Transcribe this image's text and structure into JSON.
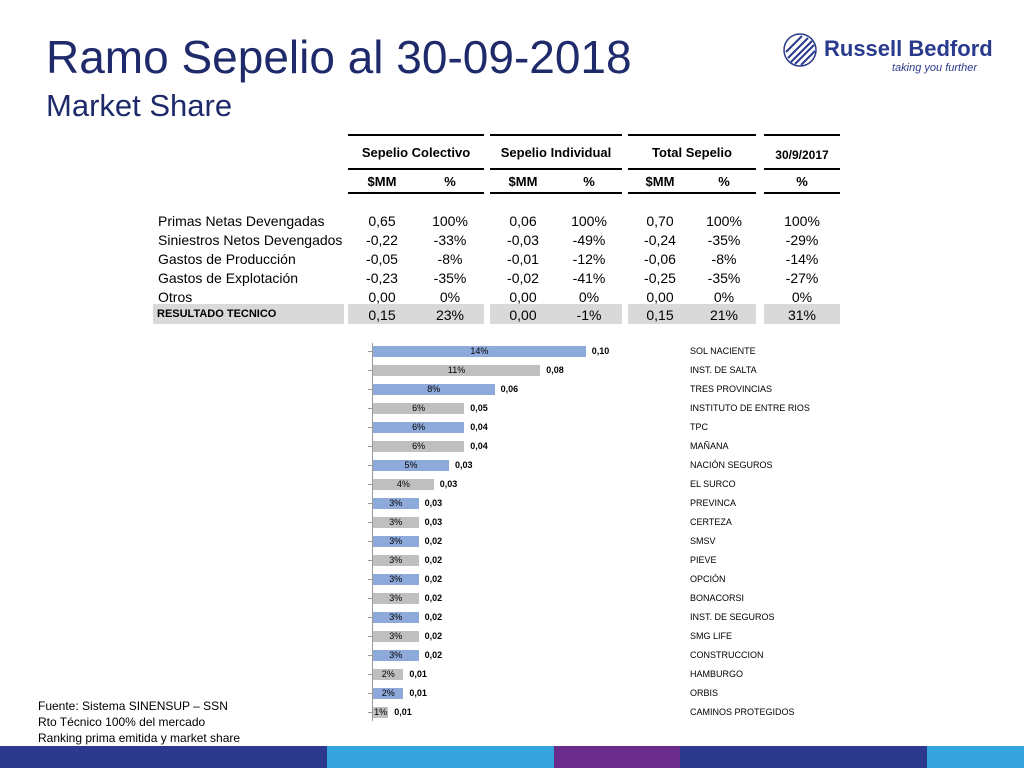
{
  "title": "Ramo Sepelio al 30-09-2018",
  "subtitle": "Market Share",
  "logo": {
    "name": "Russell Bedford",
    "tagline": "taking you further"
  },
  "table": {
    "group_headers": [
      "Sepelio Colectivo",
      "Sepelio Individual",
      "Total Sepelio",
      "30/9/2017"
    ],
    "sub_headers": [
      "$MM",
      "%",
      "$MM",
      "%",
      "$MM",
      "%",
      "%"
    ],
    "rows": [
      {
        "label": "Primas Netas Devengadas",
        "values": [
          "0,65",
          "100%",
          "0,06",
          "100%",
          "0,70",
          "100%",
          "100%"
        ]
      },
      {
        "label": "Siniestros Netos Devengados",
        "values": [
          "-0,22",
          "-33%",
          "-0,03",
          "-49%",
          "-0,24",
          "-35%",
          "-29%"
        ]
      },
      {
        "label": "Gastos de Producción",
        "values": [
          "-0,05",
          "-8%",
          "-0,01",
          "-12%",
          "-0,06",
          "-8%",
          "-14%"
        ]
      },
      {
        "label": "Gastos de Explotación",
        "values": [
          "-0,23",
          "-35%",
          "-0,02",
          "-41%",
          "-0,25",
          "-35%",
          "-27%"
        ]
      },
      {
        "label": "Otros",
        "values": [
          "0,00",
          "0%",
          "0,00",
          "0%",
          "0,00",
          "0%",
          "0%"
        ]
      }
    ],
    "result_row": {
      "label": "RESULTADO TECNICO",
      "values": [
        "0,15",
        "23%",
        "0,00",
        "-1%",
        "0,15",
        "21%",
        "31%"
      ]
    }
  },
  "chart_data": {
    "type": "bar",
    "orientation": "horizontal",
    "categories": [
      "SOL NACIENTE",
      "INST. DE SALTA",
      "TRES PROVINCIAS",
      "INSTITUTO DE ENTRE RIOS",
      "TPC",
      "MAÑANA",
      "NACIÓN SEGUROS",
      "EL SURCO",
      "PREVINCA",
      "CERTEZA",
      "SMSV",
      "PIEVE",
      "OPCIÓN",
      "BONACORSI",
      "INST. DE SEGUROS",
      "SMG LIFE",
      "CONSTRUCCION",
      "HAMBURGO",
      "ORBIS",
      "CAMINOS PROTEGIDOS"
    ],
    "values": [
      0.1,
      0.08,
      0.06,
      0.05,
      0.04,
      0.04,
      0.03,
      0.03,
      0.03,
      0.03,
      0.02,
      0.02,
      0.02,
      0.02,
      0.02,
      0.02,
      0.02,
      0.01,
      0.01,
      0.01
    ],
    "value_labels": [
      "0,10",
      "0,08",
      "0,06",
      "0,05",
      "0,04",
      "0,04",
      "0,03",
      "0,03",
      "0,03",
      "0,03",
      "0,02",
      "0,02",
      "0,02",
      "0,02",
      "0,02",
      "0,02",
      "0,02",
      "0,01",
      "0,01",
      "0,01"
    ],
    "share_labels": [
      "14%",
      "11%",
      "8%",
      "6%",
      "6%",
      "6%",
      "5%",
      "4%",
      "3%",
      "3%",
      "3%",
      "3%",
      "3%",
      "3%",
      "3%",
      "3%",
      "3%",
      "2%",
      "2%",
      "1%"
    ],
    "bar_share_values": [
      14,
      11,
      8,
      6,
      6,
      6,
      5,
      4,
      3,
      3,
      3,
      3,
      3,
      3,
      3,
      3,
      3,
      2,
      2,
      1
    ],
    "colors": [
      "#8eaadb",
      "#bfbfbf"
    ]
  },
  "source": [
    "Fuente: Sistema SINENSUP – SSN",
    "Rto Técnico 100% del mercado",
    "Ranking prima emitida y market share"
  ],
  "footer_colors": [
    "#2b3a8c",
    "#36a4dc",
    "#6a2c8c",
    "#2b3a8c",
    "#36a4dc"
  ]
}
